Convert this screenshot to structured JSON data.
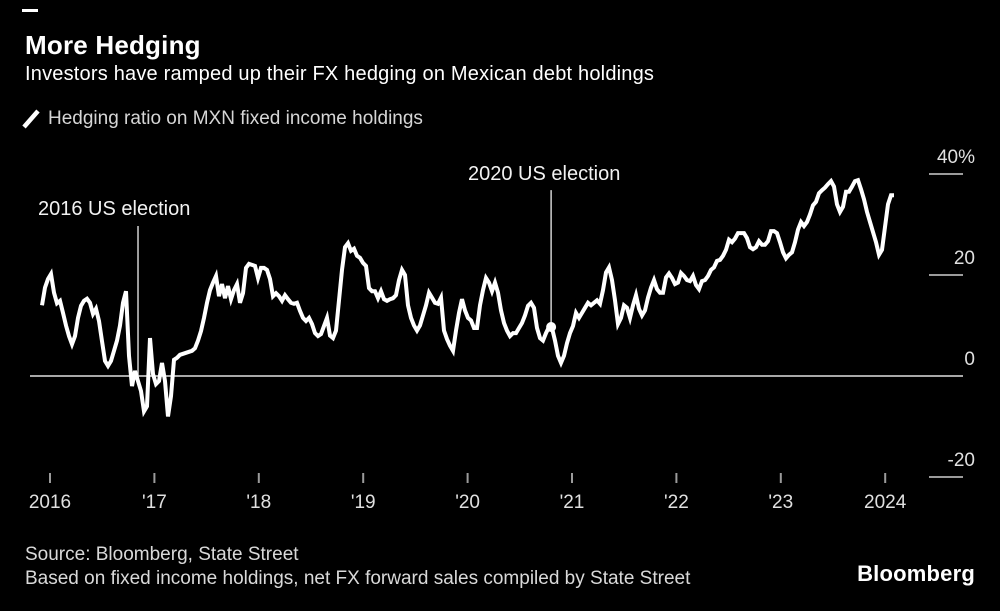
{
  "header": {
    "title": "More Hedging",
    "subtitle": "Investors have ramped up their FX hedging on Mexican debt holdings"
  },
  "legend": {
    "marker_icon": "line-stroke-icon",
    "label": "Hedging ratio on MXN fixed income holdings"
  },
  "footer": {
    "source_line": "Source: Bloomberg, State Street",
    "note_line": "Based on fixed income holdings, net FX forward sales compiled by State Street",
    "brand": "Bloomberg"
  },
  "colors": {
    "background": "#000000",
    "series_line": "#ffffff",
    "zero_line": "#e0e0e0",
    "tick": "#9b9b9b",
    "axis_label": "#e0e0e0",
    "annotation_line": "#d0d0d0",
    "text_primary": "#ffffff",
    "text_secondary": "#d9d9d9"
  },
  "chart_data": {
    "type": "line",
    "title": "More Hedging",
    "subtitle": "Investors have ramped up their FX hedging on Mexican debt holdings",
    "unit": "%",
    "grid": "zero-baseline-only",
    "legend_position": "top-left",
    "x_axis": {
      "range": [
        2015.9,
        2024.15
      ],
      "ticks": [
        {
          "label": "2016",
          "year": 2016
        },
        {
          "label": "'17",
          "year": 2017
        },
        {
          "label": "'18",
          "year": 2018
        },
        {
          "label": "'19",
          "year": 2019
        },
        {
          "label": "'20",
          "year": 2020
        },
        {
          "label": "'21",
          "year": 2021
        },
        {
          "label": "'22",
          "year": 2022
        },
        {
          "label": "'23",
          "year": 2023
        },
        {
          "label": "2024",
          "year": 2024
        }
      ]
    },
    "y_axis": {
      "side": "right",
      "range": [
        -28,
        44
      ],
      "ticks": [
        {
          "label": "40%",
          "value": 40
        },
        {
          "label": "20",
          "value": 20
        },
        {
          "label": "0",
          "value": 0
        },
        {
          "label": "-20",
          "value": -20
        }
      ]
    },
    "annotations": [
      {
        "id": "election-2016",
        "label": "2016 US election",
        "year": 2016.843,
        "line_from_value": 29.7,
        "line_to_value": -1.0,
        "marker": "none"
      },
      {
        "id": "election-2020",
        "label": "2020 US election",
        "year": 2020.8,
        "line_from_value": 36.8,
        "line_to_value": 9.7,
        "marker": "dot"
      }
    ],
    "series": [
      {
        "name": "Hedging ratio on MXN fixed income holdings",
        "color": "#ffffff",
        "x_start": 2015.9234,
        "x_step_years": 0.028736,
        "values": [
          14,
          17.5,
          19.2,
          20.2,
          16.5,
          14.4,
          14.9,
          12.5,
          10,
          7.9,
          6.3,
          7.9,
          11.5,
          13.9,
          14.9,
          15.3,
          14.5,
          12.3,
          13.3,
          10.9,
          6.9,
          3,
          2,
          3,
          5,
          7,
          10,
          14.5,
          16.8,
          4,
          -2,
          1,
          -1,
          -3,
          -7,
          -6,
          7.5,
          0.4,
          -1.6,
          -1,
          2.6,
          -1,
          -8,
          -4,
          3.2,
          3.6,
          4.2,
          4.4,
          4.6,
          4.8,
          5,
          5.5,
          7,
          8.9,
          11.5,
          14.5,
          17,
          18.5,
          19.8,
          15.8,
          18.2,
          15.4,
          17.8,
          15.2,
          17,
          18.2,
          14.5,
          16.4,
          21.4,
          22.2,
          22,
          21.8,
          19.4,
          21.4,
          21.4,
          21,
          19.2,
          15.8,
          16.4,
          15.8,
          14.9,
          16,
          15.2,
          14.5,
          14.3,
          14.5,
          12.9,
          11.5,
          10.9,
          11.5,
          10.3,
          8.5,
          7.9,
          8.3,
          9.9,
          11.5,
          8,
          7.5,
          9,
          15,
          21,
          25.5,
          26.3,
          24.8,
          25.2,
          23.8,
          23.4,
          22.4,
          21.8,
          17.4,
          16.8,
          16.8,
          15.4,
          16.8,
          15.2,
          14.9,
          15.2,
          15.4,
          16,
          19,
          21,
          20,
          14,
          11.5,
          10,
          9,
          10,
          12,
          14,
          16.5,
          15.5,
          14.5,
          14.3,
          15.5,
          9,
          7.3,
          6,
          5,
          9,
          12.5,
          15.2,
          13,
          11.5,
          11,
          9.5,
          9.5,
          14,
          17,
          19.4,
          18.5,
          16.8,
          18.5,
          16.5,
          13,
          10.5,
          9,
          7.9,
          8.5,
          8.5,
          9.5,
          10.5,
          12,
          13.9,
          14.5,
          13.5,
          9.5,
          7.5,
          7,
          8.5,
          9.7,
          9.5,
          7,
          4,
          2.6,
          4,
          6.5,
          8.5,
          9.9,
          12.5,
          11.5,
          12.5,
          13.5,
          14.5,
          14,
          14.5,
          15,
          14.3,
          17,
          20.5,
          21.5,
          19,
          15,
          10.3,
          11.5,
          14,
          13.5,
          11.5,
          14,
          16,
          13.3,
          12,
          13,
          15.5,
          17.5,
          19,
          17.2,
          16.5,
          16.5,
          19.5,
          20.3,
          19.4,
          18.2,
          18.5,
          20.4,
          19.8,
          19,
          18.8,
          19.8,
          18,
          17.2,
          18.8,
          19,
          19.8,
          21,
          21.5,
          22.8,
          23,
          23.8,
          25,
          27,
          26.5,
          27.2,
          28.3,
          28.3,
          28.3,
          27.3,
          25.5,
          25.1,
          25.5,
          26.7,
          26,
          26,
          26.7,
          28.7,
          28.7,
          28.3,
          26.5,
          24.5,
          23.3,
          24,
          24.5,
          26.5,
          29,
          30.5,
          29.7,
          30.5,
          32,
          33.8,
          34.5,
          36.2,
          36.8,
          37.3,
          38,
          38.6,
          37.5,
          34,
          32.5,
          33.5,
          36.5,
          36.5,
          37.5,
          38.6,
          38.8,
          37,
          35,
          32.5,
          30.5,
          28.5,
          26.5,
          24,
          25,
          29.5,
          34,
          35.8,
          35.8
        ]
      }
    ]
  }
}
